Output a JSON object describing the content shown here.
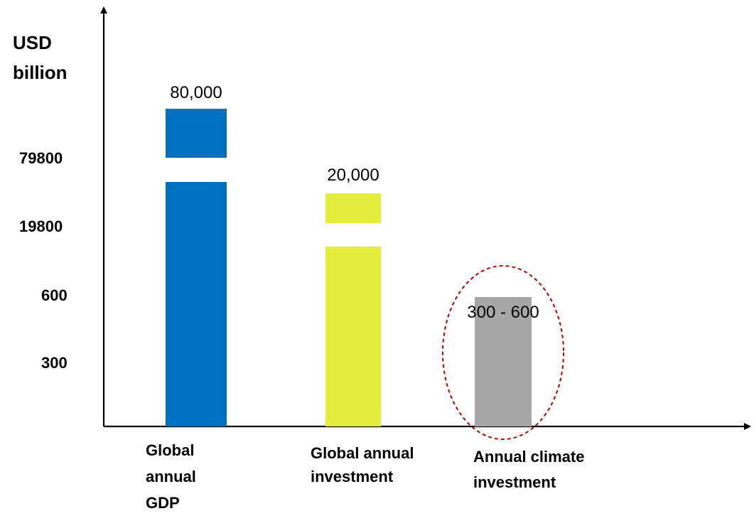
{
  "chart_data": {
    "type": "bar",
    "ylabel": "USD billion",
    "y_axis_broken": true,
    "y_ticks": [
      "79800",
      "19800",
      "600",
      "300"
    ],
    "categories": [
      "Global annual GDP",
      "Global annual investment",
      "Annual climate investment"
    ],
    "values": [
      80000,
      20000,
      600
    ],
    "value_ranges": [
      null,
      null,
      [
        300,
        600
      ]
    ],
    "value_labels": [
      "80,000",
      "20,000",
      "300 - 600"
    ],
    "bar_colors": [
      "#0070c0",
      "#e4ee3e",
      "#a6a6a6"
    ],
    "broken_bars": [
      true,
      true,
      false
    ],
    "highlight": {
      "category": "Annual climate investment",
      "shape": "dashed-ellipse",
      "color": "#c00000"
    },
    "grid": false,
    "legend": "none"
  }
}
